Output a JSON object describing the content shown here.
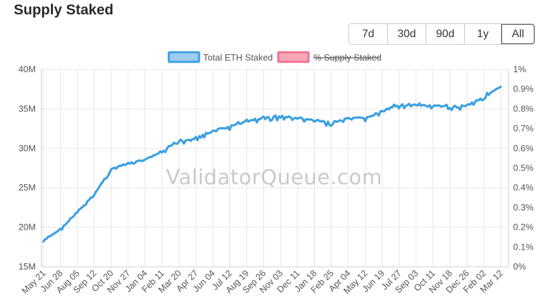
{
  "page": {
    "title": "Supply Staked",
    "watermark": "ValidatorQueue.com"
  },
  "range_buttons": [
    {
      "label": "7d",
      "active": false
    },
    {
      "label": "30d",
      "active": false
    },
    {
      "label": "90d",
      "active": false
    },
    {
      "label": "1y",
      "active": false
    },
    {
      "label": "All",
      "active": true
    }
  ],
  "colors": {
    "total_eth_line": "#3b9fe0",
    "total_eth_fill": "#9ecdf0",
    "supply_pct_line": "#f07090",
    "supply_pct_fill": "#f6a8b8",
    "grid": "#e6e6e6"
  },
  "chart_data": {
    "type": "line",
    "title": "",
    "xlabel": "",
    "ylabel": "",
    "y_left": {
      "min": 15,
      "max": 40,
      "unit": "M",
      "ticks": [
        "40M",
        "35M",
        "30M",
        "25M",
        "20M",
        "15M"
      ],
      "tick_values": [
        40,
        35,
        30,
        25,
        20,
        15
      ]
    },
    "y_right": {
      "min": 0,
      "max": 1,
      "unit": "%",
      "ticks": [
        "1%",
        "0.9%",
        "0.8%",
        "0.7%",
        "0.6%",
        "0.5%",
        "0.4%",
        "0.3%",
        "0.2%",
        "0.1%",
        "0%"
      ],
      "tick_values": [
        1,
        0.9,
        0.8,
        0.7,
        0.6,
        0.5,
        0.4,
        0.3,
        0.2,
        0.1,
        0
      ]
    },
    "x_tick_labels": [
      "May 21",
      "Jun 28",
      "Aug 05",
      "Sep 12",
      "Oct 20",
      "Nov 27",
      "Jan 04",
      "Feb 11",
      "Mar 20",
      "Apr 27",
      "Jun 04",
      "Jul 12",
      "Aug 19",
      "Sep 26",
      "Nov 03",
      "Dec 11",
      "Jan 18",
      "Feb 25",
      "Apr 04",
      "May 12",
      "Jun 19",
      "Jul 27",
      "Sep 03",
      "Oct 11",
      "Nov 18",
      "Dec 26",
      "Feb 02",
      "Mar 12"
    ],
    "grid": true,
    "legend": {
      "placement": "top-center"
    },
    "series": [
      {
        "name": "Total ETH Staked",
        "axis": "left",
        "hidden": false,
        "x": [
          "May 21",
          "Jun 28",
          "Aug 05",
          "Sep 12",
          "Oct 20",
          "Nov 27",
          "Jan 04",
          "Feb 11",
          "Mar 20",
          "Apr 27",
          "Jun 04",
          "Jul 12",
          "Aug 19",
          "Sep 26",
          "Nov 03",
          "Dec 11",
          "Jan 18",
          "Feb 25",
          "Apr 04",
          "May 12",
          "Jun 19",
          "Jul 27",
          "Sep 03",
          "Oct 11",
          "Nov 18",
          "Dec 26",
          "Feb 02",
          "Mar 12"
        ],
        "values": [
          18.3,
          19.8,
          21.9,
          24.2,
          27.4,
          28.1,
          28.6,
          29.6,
          30.9,
          31.5,
          32.2,
          32.8,
          33.5,
          33.9,
          34.1,
          33.9,
          33.6,
          33.3,
          33.8,
          33.9,
          34.7,
          35.6,
          35.5,
          35.4,
          35.3,
          35.5,
          36.6,
          37.8
        ]
      },
      {
        "name": "% Supply Staked",
        "axis": "right",
        "hidden": true,
        "values": []
      }
    ]
  }
}
